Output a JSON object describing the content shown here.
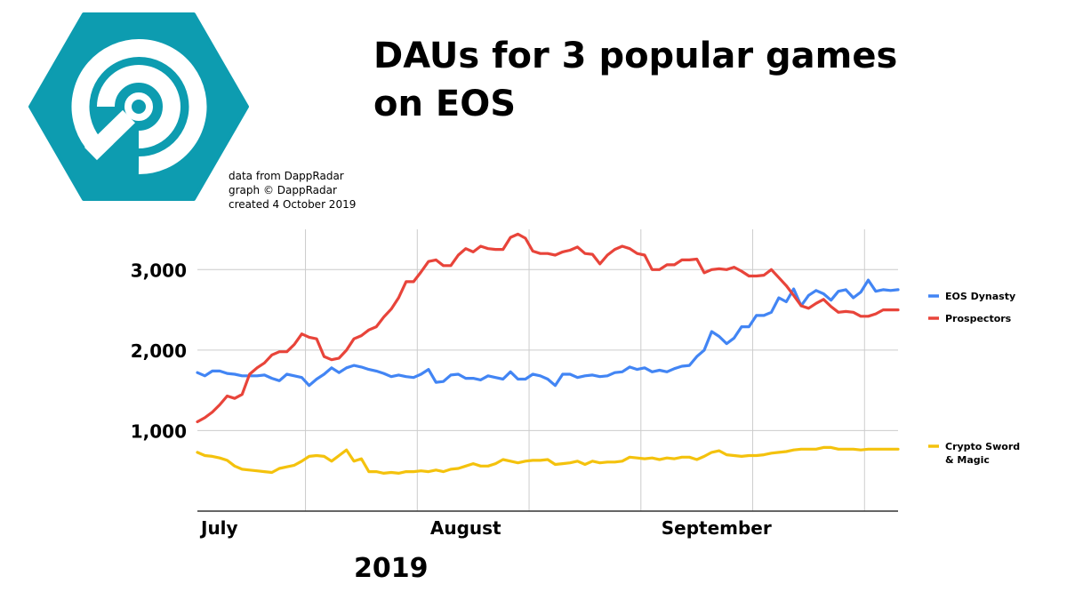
{
  "logo": {
    "icon": "dappradar-logo-icon",
    "color": "#0d9cb0"
  },
  "header": {
    "title": "DAUs for 3 popular games on EOS",
    "credits": [
      "data from DappRadar",
      "graph © DappRadar",
      "created 4 October 2019"
    ]
  },
  "footer": {
    "year": "2019"
  },
  "chart_data": {
    "type": "line",
    "title": "DAUs for 3 popular games on EOS",
    "xlabel": "2019",
    "ylabel": "",
    "ylim": [
      0,
      3500
    ],
    "yticks": [
      1000,
      2000,
      3000
    ],
    "ytick_labels": [
      "1,000",
      "2,000",
      "3,000"
    ],
    "x_tick_labels": [
      {
        "label": "July",
        "day": 0
      },
      {
        "label": "August",
        "day": 31
      },
      {
        "label": "September",
        "day": 62
      }
    ],
    "grid": true,
    "legend_position": "right",
    "days": 95,
    "series": [
      {
        "name": "EOS Dynasty",
        "color": "#4285f4",
        "values": [
          1720,
          1680,
          1740,
          1740,
          1710,
          1700,
          1680,
          1680,
          1680,
          1690,
          1650,
          1620,
          1700,
          1680,
          1660,
          1560,
          1640,
          1700,
          1780,
          1720,
          1780,
          1810,
          1790,
          1760,
          1740,
          1710,
          1670,
          1690,
          1670,
          1660,
          1700,
          1760,
          1600,
          1610,
          1690,
          1700,
          1650,
          1650,
          1630,
          1680,
          1660,
          1640,
          1730,
          1640,
          1640,
          1700,
          1680,
          1640,
          1560,
          1700,
          1700,
          1660,
          1680,
          1690,
          1670,
          1680,
          1720,
          1730,
          1790,
          1760,
          1780,
          1730,
          1750,
          1730,
          1770,
          1800,
          1810,
          1920,
          2000,
          2230,
          2170,
          2080,
          2150,
          2290,
          2290,
          2430,
          2430,
          2470,
          2650,
          2600,
          2760,
          2550,
          2680,
          2740,
          2700,
          2620,
          2730,
          2750,
          2650,
          2720,
          2870,
          2730,
          2750,
          2740,
          2750
        ]
      },
      {
        "name": "Prospectors",
        "color": "#e8443a",
        "values": [
          1110,
          1160,
          1230,
          1320,
          1430,
          1400,
          1450,
          1700,
          1780,
          1840,
          1940,
          1980,
          1980,
          2070,
          2200,
          2160,
          2140,
          1920,
          1880,
          1900,
          2000,
          2140,
          2180,
          2250,
          2290,
          2410,
          2510,
          2650,
          2850,
          2850,
          2970,
          3100,
          3120,
          3050,
          3050,
          3180,
          3260,
          3220,
          3290,
          3260,
          3250,
          3250,
          3400,
          3440,
          3390,
          3230,
          3200,
          3200,
          3180,
          3220,
          3240,
          3280,
          3200,
          3190,
          3070,
          3180,
          3250,
          3290,
          3260,
          3200,
          3180,
          3000,
          3000,
          3060,
          3060,
          3120,
          3120,
          3130,
          2960,
          3000,
          3010,
          3000,
          3030,
          2980,
          2920,
          2920,
          2930,
          3000,
          2900,
          2800,
          2680,
          2550,
          2520,
          2580,
          2630,
          2540,
          2470,
          2480,
          2470,
          2420,
          2420,
          2450,
          2500,
          2500,
          2500
        ]
      },
      {
        "name": "Crypto Sword & Magic",
        "color": "#f4c20d",
        "values": [
          730,
          690,
          680,
          660,
          630,
          560,
          520,
          510,
          500,
          490,
          480,
          530,
          550,
          570,
          620,
          680,
          690,
          680,
          620,
          690,
          760,
          620,
          650,
          490,
          490,
          470,
          480,
          470,
          490,
          490,
          500,
          490,
          510,
          490,
          520,
          530,
          560,
          590,
          560,
          560,
          590,
          640,
          620,
          600,
          620,
          630,
          630,
          640,
          580,
          590,
          600,
          620,
          580,
          620,
          600,
          610,
          610,
          620,
          670,
          660,
          650,
          660,
          640,
          660,
          650,
          670,
          670,
          640,
          680,
          730,
          750,
          700,
          690,
          680,
          690,
          690,
          700,
          720,
          730,
          740,
          760,
          770,
          770,
          770,
          790,
          790,
          770,
          770,
          770,
          760,
          770,
          770,
          770,
          770,
          770
        ]
      }
    ]
  }
}
